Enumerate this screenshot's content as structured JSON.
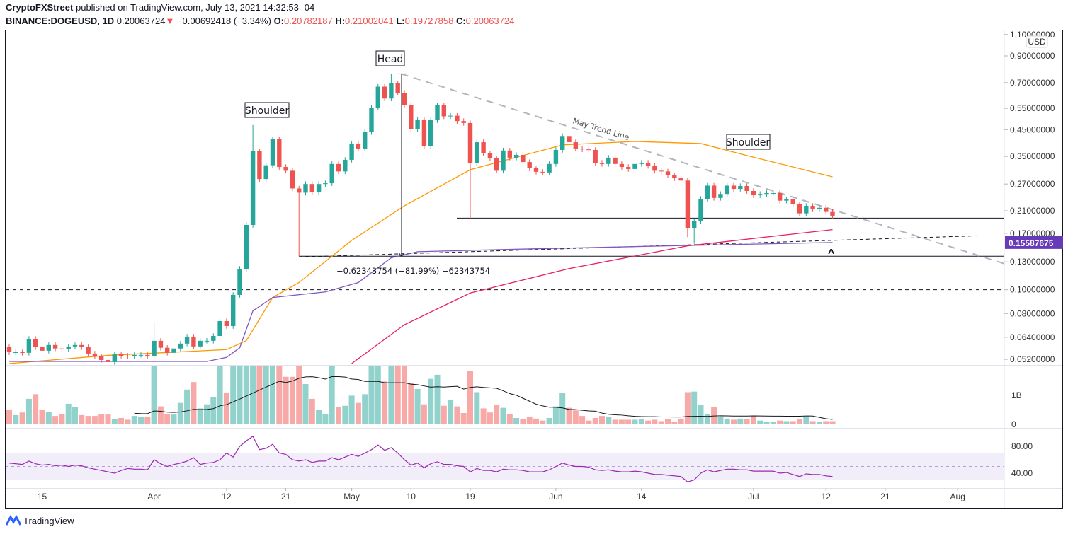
{
  "header": {
    "publisher": "CryptoFXStreet",
    "published_text": "published on TradingView.com, July 13, 2021 14:32:53 -04",
    "symbol": "BINANCE:DOGEUSD, 1D",
    "last": "0.20063724",
    "change_icon": "triangle-down-icon",
    "change": "−0.00692418 (−3.34%)",
    "o_label": "O:",
    "o": "0.20782187",
    "h_label": "H:",
    "h": "0.21002041",
    "l_label": "L:",
    "l": "0.19727858",
    "c_label": "C:",
    "c": "0.20063724"
  },
  "colors": {
    "up": "#26a69a",
    "down": "#ef5350",
    "ma_orange": "#ff9800",
    "ma_purple": "#7e57c2",
    "ma_pink": "#e91e63",
    "rsi": "#9c27b0",
    "price_label_bg": "#673ab7"
  },
  "price_axis": {
    "currency": "USD",
    "ticks": [
      "1.10000000",
      "0.90000000",
      "0.70000000",
      "0.55000000",
      "0.45000000",
      "0.35000000",
      "0.27000000",
      "0.21000000",
      "0.17000000",
      "0.13000000",
      "0.10000000",
      "0.08000000",
      "0.06400000",
      "0.05200000"
    ],
    "highlight_label": "0.15587675"
  },
  "volume_axis": {
    "ticks": [
      "1B",
      "0"
    ]
  },
  "rsi_axis": {
    "ticks": [
      "80.00",
      "40.00"
    ]
  },
  "time_axis": {
    "labels": [
      {
        "text": "15",
        "date": "2021-03-15"
      },
      {
        "text": "Apr",
        "date": "2021-04-01"
      },
      {
        "text": "12",
        "date": "2021-04-12"
      },
      {
        "text": "21",
        "date": "2021-04-21"
      },
      {
        "text": "May",
        "date": "2021-05-01"
      },
      {
        "text": "10",
        "date": "2021-05-10"
      },
      {
        "text": "19",
        "date": "2021-05-19"
      },
      {
        "text": "Jun",
        "date": "2021-06-01"
      },
      {
        "text": "14",
        "date": "2021-06-14"
      },
      {
        "text": "Jul",
        "date": "2021-07-01"
      },
      {
        "text": "12",
        "date": "2021-07-12"
      },
      {
        "text": "21",
        "date": "2021-07-21"
      },
      {
        "text": "Aug",
        "date": "2021-08-01"
      }
    ]
  },
  "annotations": {
    "head": "Head",
    "shoulder_left": "Shoulder",
    "shoulder_right": "Shoulder",
    "trend_line": "May Trend Line",
    "measure": "−0.62343754 (−81.99%) −62343754",
    "caret": "^"
  },
  "chart_data": {
    "type": "candlestick",
    "title": "",
    "scale": "log",
    "ylim": [
      0.05,
      1.1
    ],
    "first_date": "2021-03-10",
    "last_date": "2021-07-13",
    "first_open": 0.0583,
    "close": [
      0.0556,
      0.0556,
      0.0553,
      0.0631,
      0.0583,
      0.0564,
      0.0595,
      0.0576,
      0.0572,
      0.0587,
      0.0595,
      0.0583,
      0.0549,
      0.0535,
      0.0517,
      0.0507,
      0.0545,
      0.0538,
      0.0535,
      0.0542,
      0.0542,
      0.0538,
      0.0619,
      0.058,
      0.0553,
      0.0576,
      0.0603,
      0.0644,
      0.0587,
      0.0619,
      0.0619,
      0.0648,
      0.0745,
      0.0711,
      0.0953,
      0.1218,
      0.1839,
      0.367,
      0.283,
      0.322,
      0.411,
      0.317,
      0.306,
      0.259,
      0.249,
      0.27,
      0.251,
      0.27,
      0.272,
      0.326,
      0.304,
      0.339,
      0.395,
      0.377,
      0.44,
      0.553,
      0.674,
      0.603,
      0.695,
      0.637,
      0.569,
      0.451,
      0.495,
      0.385,
      0.492,
      0.566,
      0.51,
      0.513,
      0.488,
      0.479,
      0.33,
      0.4,
      0.36,
      0.344,
      0.306,
      0.37,
      0.346,
      0.355,
      0.332,
      0.313,
      0.303,
      0.301,
      0.326,
      0.372,
      0.424,
      0.4,
      0.377,
      0.374,
      0.372,
      0.33,
      0.326,
      0.346,
      0.326,
      0.317,
      0.311,
      0.326,
      0.33,
      0.32,
      0.306,
      0.304,
      0.293,
      0.285,
      0.279,
      0.178,
      0.191,
      0.235,
      0.266,
      0.237,
      0.246,
      0.266,
      0.258,
      0.265,
      0.253,
      0.243,
      0.246,
      0.248,
      0.248,
      0.231,
      0.234,
      0.223,
      0.205,
      0.22,
      0.213,
      0.216,
      0.2078,
      0.2006
    ],
    "wick_extremes": [
      {
        "index": 22,
        "high": 0.074
      },
      {
        "index": 37,
        "high": 0.47
      },
      {
        "index": 44,
        "low": 0.137
      },
      {
        "index": 58,
        "high": 0.762
      },
      {
        "index": 70,
        "low": 0.195
      },
      {
        "index": 103,
        "low": 0.164
      },
      {
        "index": 104,
        "low": 0.154
      }
    ],
    "volume_billions": [
      0.5,
      0.32,
      0.41,
      0.88,
      1.04,
      0.5,
      0.43,
      0.29,
      0.36,
      0.71,
      0.6,
      0.32,
      0.29,
      0.29,
      0.34,
      0.34,
      0.18,
      0.22,
      0.16,
      0.29,
      0.27,
      0.27,
      2.5,
      0.62,
      0.36,
      0.34,
      0.74,
      1.2,
      1.46,
      0.55,
      0.69,
      0.95,
      2.5,
      1.1,
      2.5,
      2.5,
      2.5,
      2.5,
      2.5,
      2.5,
      2.5,
      2.5,
      1.64,
      1.64,
      2.5,
      1.39,
      0.88,
      0.5,
      0.36,
      2.5,
      0.6,
      0.64,
      0.99,
      0.74,
      1.04,
      2.5,
      2.5,
      1.48,
      2.5,
      2.5,
      2.5,
      1.41,
      1.22,
      0.69,
      1.57,
      1.71,
      0.64,
      0.83,
      0.62,
      0.39,
      1.83,
      1.11,
      0.55,
      0.41,
      0.67,
      0.57,
      0.36,
      0.22,
      0.18,
      0.27,
      0.2,
      0.13,
      0.22,
      0.62,
      1.09,
      0.57,
      0.48,
      0.29,
      0.13,
      0.22,
      0.29,
      0.25,
      0.16,
      0.16,
      0.16,
      0.16,
      0.18,
      0.13,
      0.16,
      0.11,
      0.18,
      0.09,
      0.2,
      1.11,
      1.13,
      0.67,
      0.34,
      0.6,
      0.25,
      0.2,
      0.16,
      0.2,
      0.18,
      0.29,
      0.13,
      0.09,
      0.09,
      0.13,
      0.11,
      0.11,
      0.18,
      0.29,
      0.11,
      0.09,
      0.11,
      0.11
    ],
    "moving_averages": [
      {
        "color_key": "ma_orange",
        "points": [
          [
            0,
            0.05
          ],
          [
            15,
            0.054
          ],
          [
            33,
            0.057
          ],
          [
            36,
            0.062
          ],
          [
            40,
            0.093
          ],
          [
            44,
            0.107
          ],
          [
            52,
            0.159
          ],
          [
            60,
            0.22
          ],
          [
            70,
            0.309
          ],
          [
            84,
            0.39
          ],
          [
            95,
            0.403
          ],
          [
            105,
            0.395
          ],
          [
            112,
            0.353
          ],
          [
            125,
            0.289
          ]
        ]
      },
      {
        "color_key": "ma_purple",
        "points": [
          [
            0,
            0.051
          ],
          [
            30,
            0.051
          ],
          [
            33,
            0.053
          ],
          [
            35,
            0.058
          ],
          [
            37,
            0.082
          ],
          [
            40,
            0.093
          ],
          [
            48,
            0.098
          ],
          [
            53,
            0.107
          ],
          [
            58,
            0.135
          ],
          [
            62,
            0.143
          ],
          [
            75,
            0.146
          ],
          [
            100,
            0.151
          ],
          [
            125,
            0.1559
          ]
        ]
      },
      {
        "color_key": "ma_pink",
        "points": [
          [
            52,
            0.05
          ],
          [
            60,
            0.072
          ],
          [
            70,
            0.097
          ],
          [
            85,
            0.122
          ],
          [
            103,
            0.151
          ],
          [
            125,
            0.176
          ]
        ]
      }
    ],
    "levels": {
      "neckline": 0.196,
      "support": 0.137,
      "dashed_horizontal": 0.1,
      "rising_dashed_line": [
        [
          44,
          0.136
        ],
        [
          147,
          0.166
        ]
      ],
      "may_trend_line": [
        [
          59,
          0.76
        ],
        [
          151,
          0.128
        ]
      ],
      "measure_from_to": [
        0.76,
        0.137
      ]
    },
    "rsi": {
      "bands": [
        70,
        50,
        30
      ],
      "values": [
        55,
        54,
        53,
        58,
        54,
        52,
        53,
        51,
        52,
        50,
        52,
        51,
        48,
        46,
        44,
        42,
        40,
        44,
        47,
        46,
        46,
        45,
        60,
        54,
        50,
        53,
        55,
        58,
        63,
        53,
        55,
        56,
        60,
        70,
        64,
        80,
        88,
        95,
        75,
        77,
        83,
        70,
        68,
        60,
        58,
        60,
        56,
        58,
        58,
        63,
        60,
        64,
        68,
        65,
        70,
        75,
        82,
        74,
        78,
        70,
        60,
        52,
        55,
        48,
        54,
        57,
        53,
        53,
        51,
        50,
        42,
        47,
        44,
        44,
        42,
        46,
        45,
        45,
        44,
        42,
        42,
        42,
        45,
        50,
        55,
        52,
        50,
        50,
        49,
        45,
        44,
        45,
        43,
        42,
        42,
        43,
        42,
        40,
        38,
        38,
        37,
        36,
        35,
        27,
        30,
        40,
        45,
        42,
        44,
        46,
        46,
        45,
        45,
        43,
        43,
        43,
        43,
        40,
        41,
        38,
        35,
        39,
        38,
        38,
        36,
        35
      ]
    }
  },
  "footer": {
    "logo_text": "TradingView"
  }
}
